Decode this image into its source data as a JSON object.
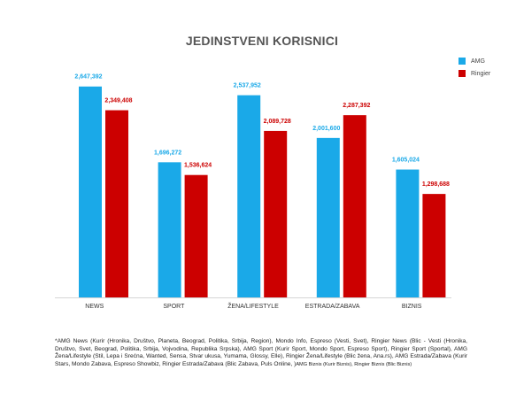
{
  "chart_data": {
    "type": "bar",
    "title": "JEDINSTVENI KORISNICI",
    "categories": [
      "NEWS",
      "SPORT",
      "ŽENA/LIFESTYLE",
      "ESTRADA/ZABAVA",
      "BIZNIS"
    ],
    "series": [
      {
        "name": "AMG",
        "color": "#1aa9e8",
        "values": [
          2647392,
          1696272,
          2537952,
          2001600,
          1605024
        ],
        "labels": [
          "2,647,392",
          "1,696,272",
          "2,537,952",
          "2,001,600",
          "1,605,024"
        ]
      },
      {
        "name": "Ringier",
        "color": "#cc0000",
        "values": [
          2349408,
          1536624,
          2089728,
          2287392,
          1298688
        ],
        "labels": [
          "2,349,408",
          "1,536,624",
          "2,089,728",
          "2,287,392",
          "1,298,688"
        ]
      }
    ],
    "ylim": [
      0,
      3000000
    ],
    "grid": false,
    "legend_position": "top-right"
  },
  "footnote": {
    "main": "*AMG News (Kurir (Hronika, Društvo, Planeta, Beograd, Politika, Srbija, Region), Mondo Info, Espreso (Vesti, Svet), Ringier News (Blic - Vesti (Hronika, Društvo, Svet, Beograd, Politika, Srbija, Vojvodina, Republika Srpska), AMG Sport (Kurir Sport, Mondo Sport, Espreso Sport), Ringier Sport (Sportal), AMG Žena/Lifestyle (Stil, Lepa i Srećna, Wanted, Sensa, Stvar ukusa, Yumama, Glossy, Elle), Ringier Žena/Lifestyle (Blic žena, Ana.rs), AMG Estrada/Zabava (Kurir Stars, Mondo Zabava, Espreso Showbiz, Ringier Estrada/Zabava (Blic Zabava, Puls Online, )",
    "tail": "AMG Biznis (Kurir Biznis), Ringier Biznis (Blic Biznis)"
  }
}
